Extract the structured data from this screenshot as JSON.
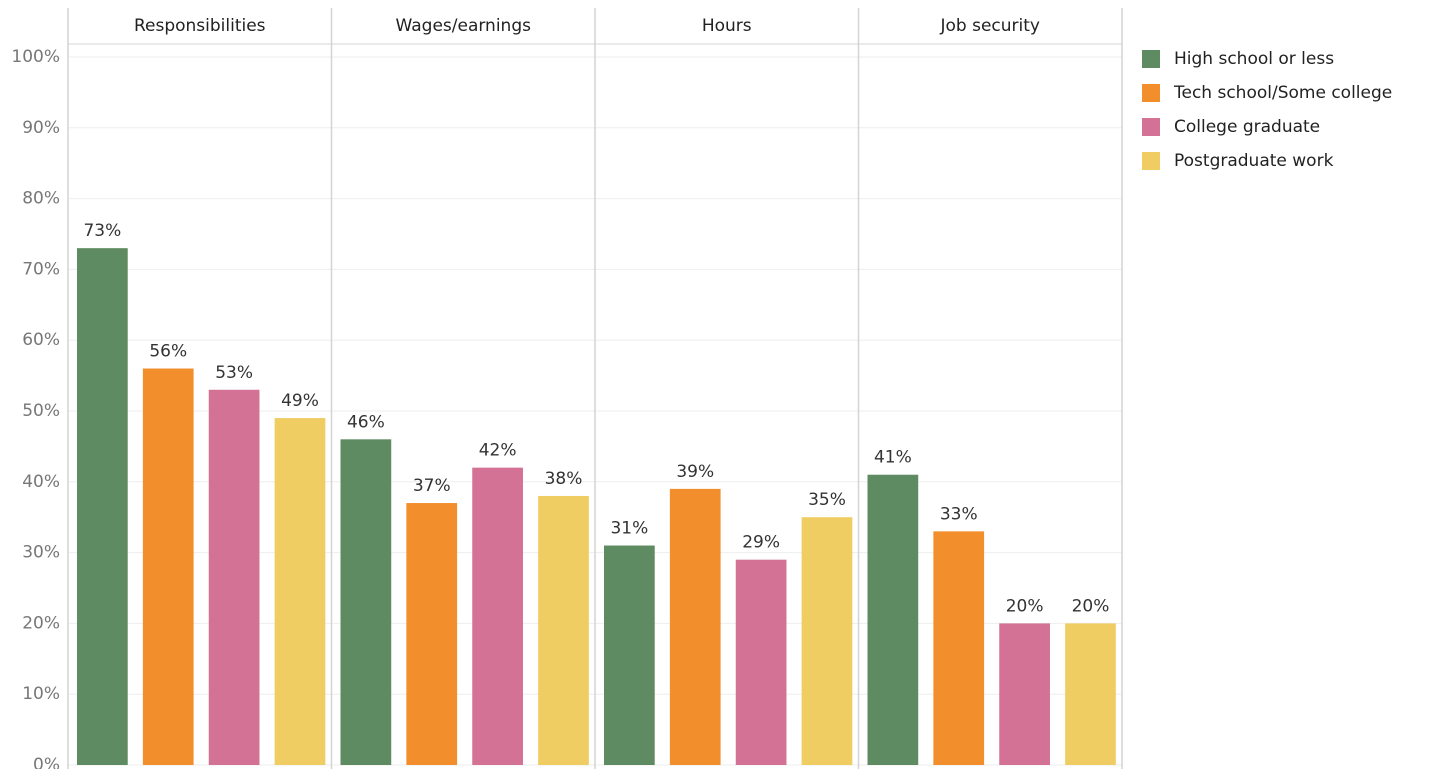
{
  "chart_data": {
    "type": "bar",
    "categories": [
      "Responsibilities",
      "Wages/earnings",
      "Hours",
      "Job security"
    ],
    "series": [
      {
        "name": "High school or less",
        "color": "#5f8b63",
        "values": [
          73,
          46,
          31,
          41
        ],
        "value_labels": [
          "73%",
          "46%",
          "31%",
          "41%"
        ]
      },
      {
        "name": "Tech school/Some college",
        "color": "#f28e2b",
        "values": [
          56,
          37,
          39,
          33
        ],
        "value_labels": [
          "56%",
          "37%",
          "39%",
          "33%"
        ]
      },
      {
        "name": "College graduate",
        "color": "#d37295",
        "values": [
          53,
          42,
          29,
          20
        ],
        "value_labels": [
          "53%",
          "42%",
          "29%",
          "20%"
        ]
      },
      {
        "name": "Postgraduate work",
        "color": "#f0cd63",
        "values": [
          49,
          38,
          35,
          20
        ],
        "value_labels": [
          "49%",
          "38%",
          "35%",
          "20%"
        ]
      }
    ],
    "ylim": [
      0,
      100
    ],
    "yticks": [
      {
        "value": 0,
        "label": "0%"
      },
      {
        "value": 10,
        "label": "10%"
      },
      {
        "value": 20,
        "label": "20%"
      },
      {
        "value": 30,
        "label": "30%"
      },
      {
        "value": 40,
        "label": "40%"
      },
      {
        "value": 50,
        "label": "50%"
      },
      {
        "value": 60,
        "label": "60%"
      },
      {
        "value": 70,
        "label": "70%"
      },
      {
        "value": 80,
        "label": "80%"
      },
      {
        "value": 90,
        "label": "90%"
      },
      {
        "value": 100,
        "label": "100%"
      }
    ],
    "grid": true,
    "legend": "right"
  }
}
